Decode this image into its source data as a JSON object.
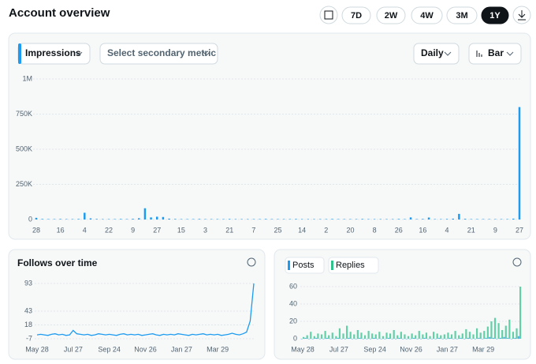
{
  "header": {
    "title": "Account overview",
    "ranges": [
      "7D",
      "2W",
      "4W",
      "3M",
      "1Y"
    ]
  },
  "controls": {
    "metric": "Impressions",
    "secondary": "Select secondary metric",
    "interval": "Daily",
    "style": "Bar"
  },
  "chart_data": [
    {
      "type": "bar",
      "color": "#1d9bf0",
      "grid": true,
      "categories": [
        "28",
        null,
        null,
        null,
        "16",
        null,
        null,
        null,
        "4",
        null,
        null,
        null,
        "22",
        null,
        null,
        null,
        "9",
        null,
        null,
        null,
        "27",
        null,
        null,
        null,
        "15",
        null,
        null,
        null,
        "3",
        null,
        null,
        null,
        "21",
        null,
        null,
        null,
        "7",
        null,
        null,
        null,
        "25",
        null,
        null,
        null,
        "14",
        null,
        null,
        null,
        "2",
        null,
        null,
        null,
        "20",
        null,
        null,
        null,
        "8",
        null,
        null,
        null,
        "26",
        null,
        null,
        null,
        "16",
        null,
        null,
        null,
        "4",
        null,
        null,
        null,
        "21",
        null,
        null,
        null,
        "9",
        null,
        null,
        null,
        "27"
      ],
      "values": [
        12000,
        4000,
        3000,
        3000,
        4000,
        3000,
        3000,
        4000,
        48000,
        8000,
        4000,
        3000,
        3000,
        3000,
        4000,
        3000,
        5000,
        9000,
        80000,
        15000,
        20000,
        18000,
        6000,
        4000,
        3000,
        3000,
        3000,
        4000,
        3000,
        3000,
        3000,
        3000,
        4000,
        3000,
        3000,
        3000,
        3000,
        3000,
        4000,
        3000,
        3000,
        3000,
        3000,
        4000,
        3000,
        3000,
        3000,
        3000,
        3000,
        4000,
        3000,
        3000,
        3000,
        3000,
        4000,
        3000,
        3000,
        3000,
        3000,
        3000,
        4000,
        3000,
        15000,
        3000,
        4000,
        14000,
        3000,
        3000,
        4000,
        6000,
        40000,
        5000,
        3000,
        3000,
        3000,
        3000,
        3000,
        3000,
        3000,
        6000,
        800000
      ],
      "ylim": [
        0,
        1000000
      ],
      "yticks": [
        0,
        {
          "value": 250000,
          "label": "250K"
        },
        {
          "value": 500000,
          "label": "500K"
        },
        {
          "value": 750000,
          "label": "750K"
        },
        {
          "value": 1000000,
          "label": "1M"
        }
      ]
    },
    {
      "type": "line",
      "title": "Follows over time",
      "color": "#1d9bf0",
      "grid": true,
      "categories": [
        "May 28",
        null,
        null,
        null,
        null,
        null,
        null,
        null,
        null,
        null,
        "Jul 27",
        null,
        null,
        null,
        null,
        null,
        null,
        null,
        null,
        null,
        "Sep 24",
        null,
        null,
        null,
        null,
        null,
        null,
        null,
        null,
        null,
        "Nov 26",
        null,
        null,
        null,
        null,
        null,
        null,
        null,
        null,
        null,
        "Jan 27",
        null,
        null,
        null,
        null,
        null,
        null,
        null,
        null,
        null,
        "Mar 29",
        null,
        null,
        null,
        null,
        null,
        null,
        null,
        null,
        null,
        null
      ],
      "values": [
        0,
        1,
        0,
        -1,
        1,
        2,
        0,
        1,
        -1,
        0,
        8,
        2,
        1,
        0,
        1,
        -1,
        0,
        2,
        1,
        0,
        1,
        0,
        -1,
        1,
        2,
        0,
        1,
        0,
        1,
        -1,
        0,
        1,
        2,
        0,
        -1,
        1,
        0,
        1,
        0,
        2,
        1,
        0,
        -1,
        1,
        0,
        1,
        2,
        0,
        1,
        0,
        1,
        -1,
        0,
        1,
        3,
        1,
        0,
        2,
        5,
        25,
        93
      ],
      "ylim": [
        -7,
        93
      ],
      "yticks": [
        -7,
        18,
        43,
        93
      ]
    },
    {
      "type": "bar",
      "grid": true,
      "categories": [
        "May 28",
        null,
        null,
        null,
        null,
        null,
        null,
        null,
        null,
        null,
        "Jul 27",
        null,
        null,
        null,
        null,
        null,
        null,
        null,
        null,
        null,
        "Sep 24",
        null,
        null,
        null,
        null,
        null,
        null,
        null,
        null,
        null,
        "Nov 26",
        null,
        null,
        null,
        null,
        null,
        null,
        null,
        null,
        null,
        "Jan 27",
        null,
        null,
        null,
        null,
        null,
        null,
        null,
        null,
        null,
        "Mar 29",
        null,
        null,
        null,
        null,
        null,
        null,
        null,
        null,
        null,
        null
      ],
      "series": [
        {
          "name": "Posts",
          "color": "#1d9bf0",
          "values": [
            0,
            1,
            0,
            0,
            1,
            0,
            0,
            1,
            0,
            0,
            1,
            0,
            0,
            1,
            0,
            0,
            1,
            0,
            0,
            0,
            1,
            0,
            0,
            0,
            1,
            0,
            0,
            1,
            0,
            0,
            0,
            1,
            0,
            0,
            1,
            0,
            0,
            0,
            1,
            0,
            0,
            1,
            0,
            0,
            1,
            0,
            1,
            0,
            0,
            1,
            0,
            1,
            2,
            1,
            0,
            1,
            2,
            1,
            0,
            1,
            3
          ]
        },
        {
          "name": "Replies",
          "color": "#2fc28a",
          "values": [
            2,
            4,
            8,
            3,
            6,
            5,
            9,
            4,
            7,
            3,
            12,
            6,
            15,
            8,
            5,
            10,
            7,
            4,
            9,
            6,
            5,
            8,
            3,
            7,
            6,
            10,
            4,
            8,
            5,
            3,
            6,
            4,
            9,
            5,
            7,
            3,
            8,
            6,
            4,
            5,
            7,
            5,
            9,
            4,
            6,
            11,
            8,
            5,
            12,
            7,
            9,
            14,
            20,
            24,
            18,
            10,
            15,
            22,
            8,
            12,
            60
          ]
        }
      ],
      "ylim": [
        0,
        60
      ],
      "yticks": [
        0,
        20,
        40,
        60
      ]
    }
  ]
}
